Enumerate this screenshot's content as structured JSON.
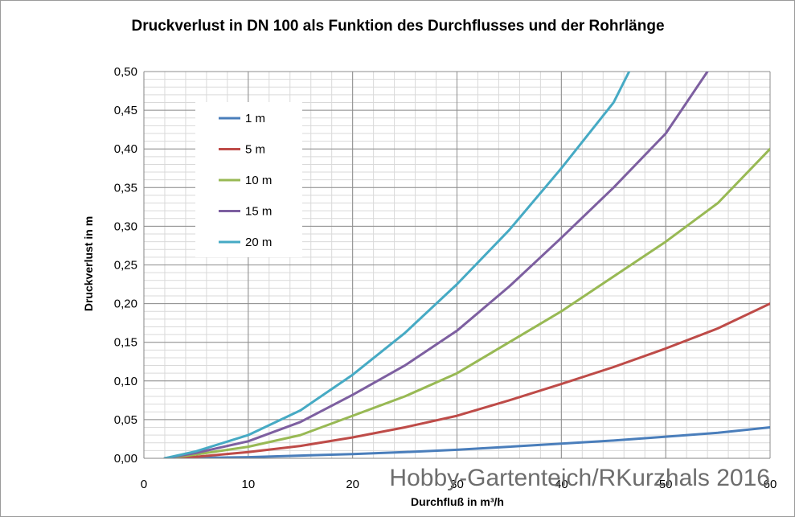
{
  "chart_data": {
    "type": "line",
    "title": "Druckverlust in DN 100 als Funktion des Durchflusses und der Rohrlänge",
    "xlabel": "Durchfluß in m³/h",
    "ylabel": "Druckverlust in m",
    "xlim": [
      0,
      60
    ],
    "ylim": [
      0,
      0.5
    ],
    "x_ticks": [
      0,
      10,
      20,
      30,
      40,
      50,
      60
    ],
    "x_tick_labels": [
      "0",
      "10",
      "20",
      "30",
      "40",
      "50",
      "60"
    ],
    "y_ticks": [
      0,
      0.05,
      0.1,
      0.15,
      0.2,
      0.25,
      0.3,
      0.35,
      0.4,
      0.45,
      0.5
    ],
    "y_tick_labels": [
      "0,00",
      "0,05",
      "0,10",
      "0,15",
      "0,20",
      "0,25",
      "0,30",
      "0,35",
      "0,40",
      "0,45",
      "0,50"
    ],
    "grid": true,
    "legend_position": "top-left",
    "series": [
      {
        "name": "1 m",
        "color": "#4a7ebb",
        "x": [
          2,
          5,
          10,
          15,
          20,
          25,
          30,
          35,
          40,
          45,
          50,
          55,
          60
        ],
        "y": [
          0,
          0.0005,
          0.0015,
          0.0035,
          0.0055,
          0.008,
          0.011,
          0.015,
          0.019,
          0.023,
          0.028,
          0.033,
          0.04
        ]
      },
      {
        "name": "5 m",
        "color": "#be4b48",
        "x": [
          2,
          5,
          10,
          15,
          20,
          25,
          30,
          35,
          40,
          45,
          50,
          55,
          60
        ],
        "y": [
          0,
          0.002,
          0.008,
          0.016,
          0.027,
          0.04,
          0.055,
          0.075,
          0.096,
          0.118,
          0.142,
          0.168,
          0.2
        ]
      },
      {
        "name": "10 m",
        "color": "#98b954",
        "x": [
          2,
          5,
          10,
          15,
          20,
          25,
          30,
          35,
          40,
          45,
          50,
          55,
          60
        ],
        "y": [
          0,
          0.005,
          0.015,
          0.03,
          0.055,
          0.08,
          0.11,
          0.15,
          0.19,
          0.235,
          0.28,
          0.33,
          0.4
        ]
      },
      {
        "name": "15 m",
        "color": "#7d5fa0",
        "x": [
          2,
          5,
          10,
          15,
          20,
          25,
          30,
          35,
          40,
          45,
          50,
          54
        ],
        "y": [
          0,
          0.007,
          0.022,
          0.047,
          0.082,
          0.12,
          0.165,
          0.222,
          0.285,
          0.35,
          0.42,
          0.5
        ]
      },
      {
        "name": "20 m",
        "color": "#46aac4",
        "x": [
          2,
          5,
          10,
          15,
          20,
          25,
          30,
          35,
          40,
          45,
          46.5
        ],
        "y": [
          0,
          0.009,
          0.03,
          0.062,
          0.108,
          0.162,
          0.225,
          0.295,
          0.375,
          0.46,
          0.5
        ]
      }
    ],
    "watermark": "Hobby-Gartenteich/RKurzhals 2016"
  }
}
